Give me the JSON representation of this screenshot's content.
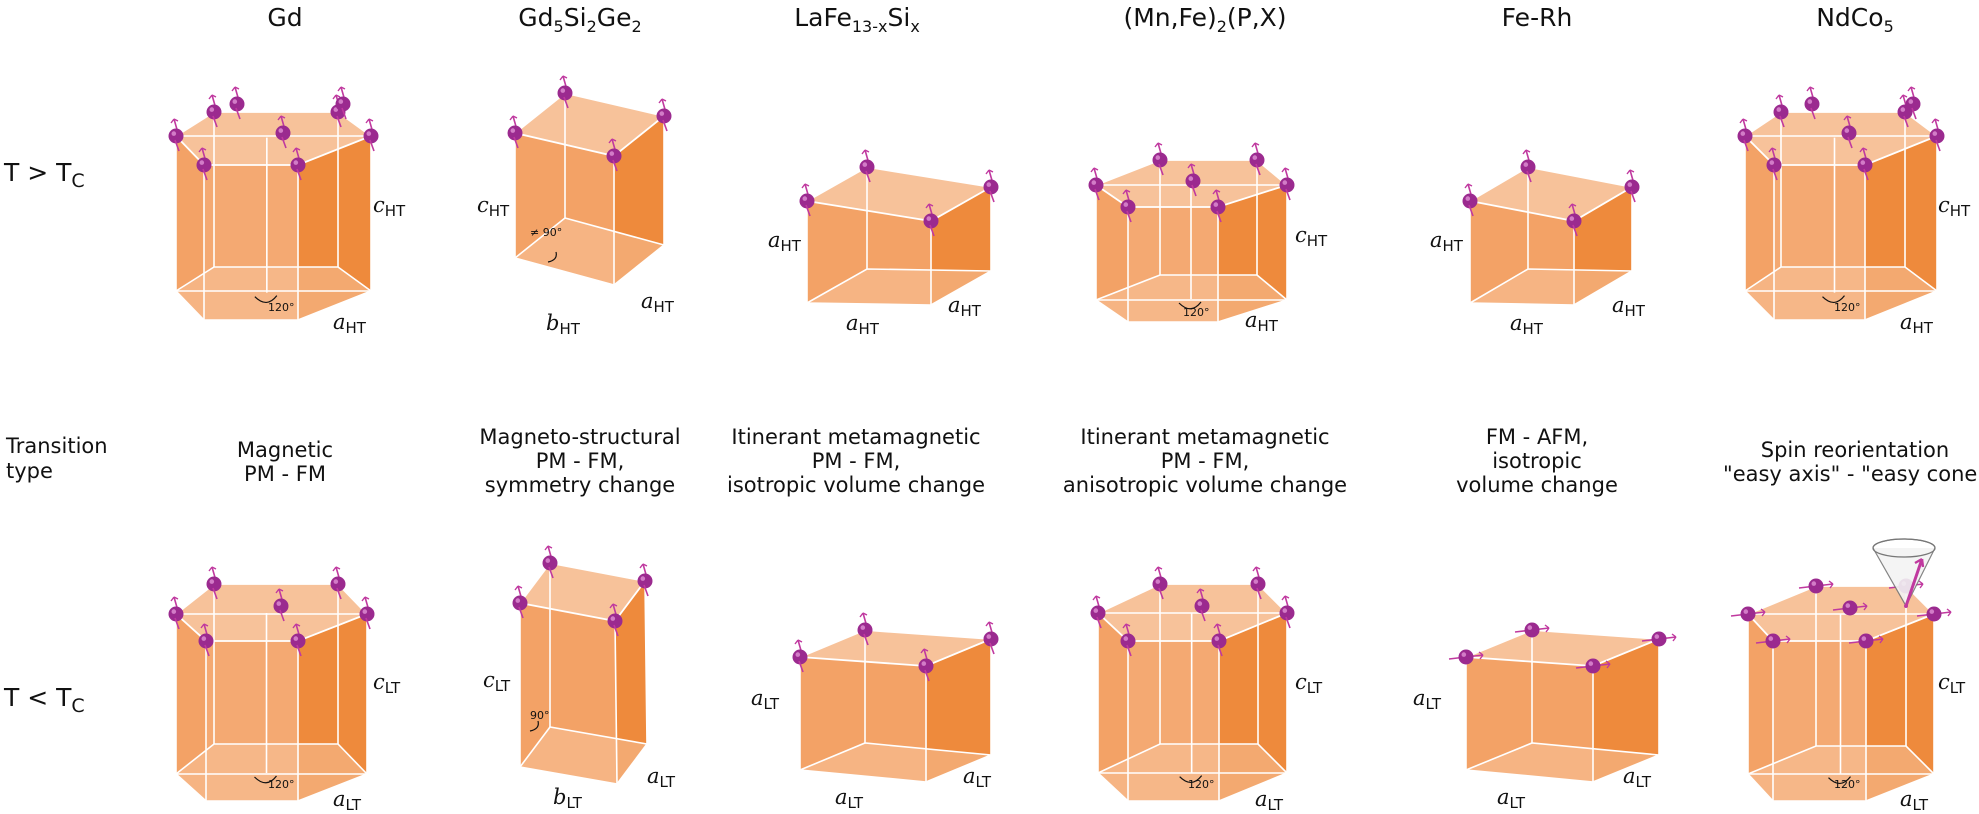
{
  "columns": [
    {
      "title": "Gd"
    },
    {
      "title": "Gd5Si2Ge2",
      "base": "Gd",
      "s1": "5",
      "mid1": "Si",
      "s2": "2",
      "mid2": "Ge",
      "s3": "2"
    },
    {
      "title": "LaFe13-xSix",
      "base": "LaFe",
      "s1": "13-x",
      "mid1": "Si",
      "s2": "x"
    },
    {
      "title": "(Mn,Fe)2(P,X)",
      "base": "(Mn,Fe)",
      "s1": "2",
      "mid1": "(P,X)"
    },
    {
      "title": "Fe-Rh"
    },
    {
      "title": "NdCo5",
      "base": "NdCo",
      "s1": "5"
    }
  ],
  "rows": {
    "high": {
      "label": "T > T",
      "sub": "C"
    },
    "transition": {
      "label": "Transition\ntype"
    },
    "low": {
      "label": "T < T",
      "sub": "C"
    }
  },
  "transitions": [
    "Magnetic\nPM - FM",
    "Magneto-structural\nPM - FM,\nsymmetry change",
    "Itinerant metamagnetic\nPM - FM,\nisotropic volume change",
    "Itinerant metamagnetic\nPM - FM,\nanisotropic volume change",
    "FM - AFM,\nisotropic\nvolume change",
    "Spin reorientation\n\"easy axis\" - \"easy cone\""
  ],
  "lattice_labels": {
    "c": "c",
    "a": "a",
    "b": "b",
    "HT": "HT",
    "LT": "LT"
  },
  "angles": {
    "hex": "120°",
    "mono_high": "≠ 90°",
    "mono_low": "90°"
  },
  "colors": {
    "crystal_front": "#f3a266",
    "crystal_top": "#f7c29a",
    "crystal_side": "#ee8a3c",
    "atom": "#9b2a8f",
    "spin": "#c0399f"
  },
  "icons": [
    "spin-atom-icon",
    "easy-cone-icon"
  ]
}
